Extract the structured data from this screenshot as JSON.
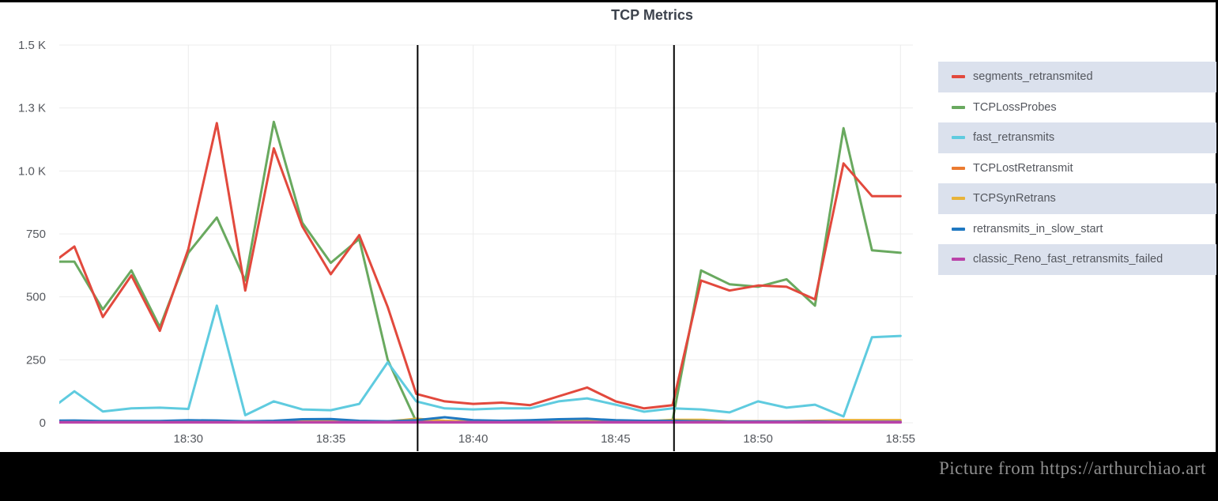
{
  "panel": {
    "title": "TCP Metrics"
  },
  "caption": {
    "text": "Picture from https://arthurchiao.art"
  },
  "colors": {
    "red": "#E2493D",
    "green": "#69A95F",
    "cyan": "#5FCBDF",
    "orange": "#EB7B30",
    "yellow": "#E8B339",
    "blue": "#1F78C1",
    "magenta": "#BA43A9",
    "grid": "#ECECEC",
    "axis_text": "#55585E",
    "legend_stripe": "#DBE1ED",
    "annotation_line": "#000000",
    "title_text": "#3D434D"
  },
  "legend": {
    "position": "right",
    "items": [
      {
        "label": "segments_retransmited",
        "color_key": "red"
      },
      {
        "label": "TCPLossProbes",
        "color_key": "green"
      },
      {
        "label": "fast_retransmits",
        "color_key": "cyan"
      },
      {
        "label": "TCPLostRetransmit",
        "color_key": "orange"
      },
      {
        "label": "TCPSynRetrans",
        "color_key": "yellow"
      },
      {
        "label": "retransmits_in_slow_start",
        "color_key": "blue"
      },
      {
        "label": "classic_Reno_fast_retransmits_failed",
        "color_key": "magenta"
      }
    ]
  },
  "chart_data": {
    "type": "line",
    "title": "TCP Metrics",
    "xlabel": "time",
    "ylabel": "",
    "ylim": [
      0,
      1500
    ],
    "grid": true,
    "legend_position": "right",
    "y_ticks": [
      {
        "label": "1.5 K",
        "value": 1500
      },
      {
        "label": "1.3 K",
        "value": 1250
      },
      {
        "label": "1.0 K",
        "value": 1000
      },
      {
        "label": "750",
        "value": 750
      },
      {
        "label": "500",
        "value": 500
      },
      {
        "label": "250",
        "value": 250
      },
      {
        "label": "0",
        "value": 0
      }
    ],
    "x": [
      "18:25",
      "18:26",
      "18:27",
      "18:28",
      "18:29",
      "18:30",
      "18:31",
      "18:32",
      "18:33",
      "18:34",
      "18:35",
      "18:36",
      "18:37",
      "18:38",
      "18:39",
      "18:40",
      "18:41",
      "18:42",
      "18:43",
      "18:44",
      "18:45",
      "18:46",
      "18:47",
      "18:48",
      "18:49",
      "18:50",
      "18:51",
      "18:52",
      "18:53",
      "18:54",
      "18:55"
    ],
    "x_tick_labels": [
      "18:30",
      "18:35",
      "18:40",
      "18:45",
      "18:50",
      "18:55"
    ],
    "series": [
      {
        "name": "segments_retransmited",
        "color_key": "red",
        "values": [
          615,
          700,
          420,
          585,
          365,
          690,
          1190,
          525,
          1090,
          780,
          590,
          745,
          460,
          115,
          85,
          75,
          80,
          70,
          105,
          140,
          85,
          57,
          70,
          565,
          525,
          545,
          540,
          490,
          1030,
          900,
          900
        ]
      },
      {
        "name": "TCPLossProbes",
        "color_key": "green",
        "values": [
          640,
          640,
          450,
          605,
          380,
          675,
          815,
          565,
          1195,
          795,
          635,
          730,
          250,
          5,
          3,
          3,
          3,
          3,
          3,
          3,
          3,
          3,
          10,
          605,
          550,
          540,
          570,
          465,
          1170,
          685,
          675
        ]
      },
      {
        "name": "fast_retransmits",
        "color_key": "cyan",
        "values": [
          40,
          125,
          45,
          57,
          60,
          55,
          465,
          30,
          85,
          53,
          50,
          75,
          240,
          85,
          57,
          53,
          57,
          57,
          85,
          97,
          72,
          44,
          57,
          53,
          41,
          85,
          60,
          72,
          25,
          340,
          345
        ]
      },
      {
        "name": "TCPLostRetransmit",
        "color_key": "orange",
        "values": [
          5,
          6,
          4,
          5,
          4,
          6,
          8,
          4,
          6,
          8,
          10,
          6,
          5,
          8,
          6,
          5,
          5,
          6,
          8,
          10,
          6,
          5,
          5,
          8,
          6,
          6,
          6,
          8,
          10,
          10,
          10
        ]
      },
      {
        "name": "TCPSynRetrans",
        "color_key": "yellow",
        "values": [
          4,
          5,
          4,
          4,
          4,
          5,
          6,
          4,
          5,
          6,
          8,
          6,
          5,
          16,
          8,
          5,
          4,
          5,
          6,
          8,
          6,
          5,
          12,
          12,
          6,
          5,
          5,
          6,
          10,
          10,
          10
        ]
      },
      {
        "name": "retransmits_in_slow_start",
        "color_key": "blue",
        "values": [
          8,
          9,
          7,
          7,
          7,
          10,
          9,
          6,
          8,
          14,
          15,
          8,
          6,
          10,
          22,
          10,
          8,
          10,
          14,
          16,
          10,
          8,
          8,
          6,
          5,
          5,
          5,
          5,
          4,
          4,
          4
        ]
      },
      {
        "name": "classic_Reno_fast_retransmits_failed",
        "color_key": "magenta",
        "values": [
          2,
          2,
          2,
          2,
          2,
          2,
          2,
          2,
          2,
          2,
          2,
          2,
          2,
          2,
          2,
          2,
          2,
          2,
          2,
          2,
          2,
          2,
          2,
          2,
          2,
          2,
          2,
          2,
          2,
          2,
          2
        ]
      }
    ],
    "annotations": {
      "vertical_lines": [
        {
          "time": "18:38",
          "x_index": 13.05
        },
        {
          "time": "18:47",
          "x_index": 22.05
        }
      ]
    }
  }
}
